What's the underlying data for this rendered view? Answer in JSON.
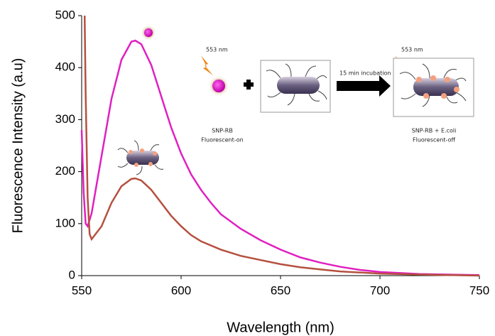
{
  "chart_data": {
    "type": "line",
    "xlabel": "Wavelength (nm)",
    "ylabel": "Fluorescence Intensity (a.u)",
    "xlim": [
      550,
      750
    ],
    "ylim": [
      0,
      500
    ],
    "xticks": [
      550,
      600,
      650,
      700,
      750
    ],
    "yticks": [
      0,
      100,
      200,
      300,
      400,
      500
    ],
    "grid": false,
    "series": [
      {
        "color": "#e020c0",
        "x": [
          550,
          551,
          552,
          553,
          555,
          560,
          565,
          570,
          575,
          577,
          580,
          585,
          590,
          595,
          600,
          605,
          610,
          615,
          620,
          630,
          640,
          650,
          660,
          670,
          680,
          690,
          700,
          720,
          750
        ],
        "values": [
          280,
          160,
          100,
          95,
          120,
          230,
          340,
          415,
          450,
          452,
          445,
          405,
          345,
          285,
          235,
          195,
          165,
          140,
          118,
          90,
          68,
          50,
          35,
          25,
          17,
          11,
          7,
          3,
          1
        ]
      },
      {
        "color": "#b5503f",
        "x": [
          551.5,
          552,
          553,
          554,
          555,
          560,
          565,
          570,
          575,
          577,
          580,
          585,
          590,
          595,
          600,
          605,
          610,
          620,
          630,
          640,
          650,
          660,
          670,
          680,
          700,
          720,
          750
        ],
        "values": [
          500,
          350,
          150,
          80,
          70,
          95,
          140,
          172,
          186,
          187,
          183,
          165,
          140,
          115,
          95,
          78,
          66,
          50,
          38,
          30,
          22,
          16,
          12,
          8,
          4,
          2,
          0
        ]
      }
    ],
    "annotations": [
      "553 nm",
      "553 nm",
      "15 min incubation",
      "SNP-RB",
      "Fluorescent-on",
      "SNP-RB + E.coli",
      "Fluorescent-off"
    ]
  }
}
